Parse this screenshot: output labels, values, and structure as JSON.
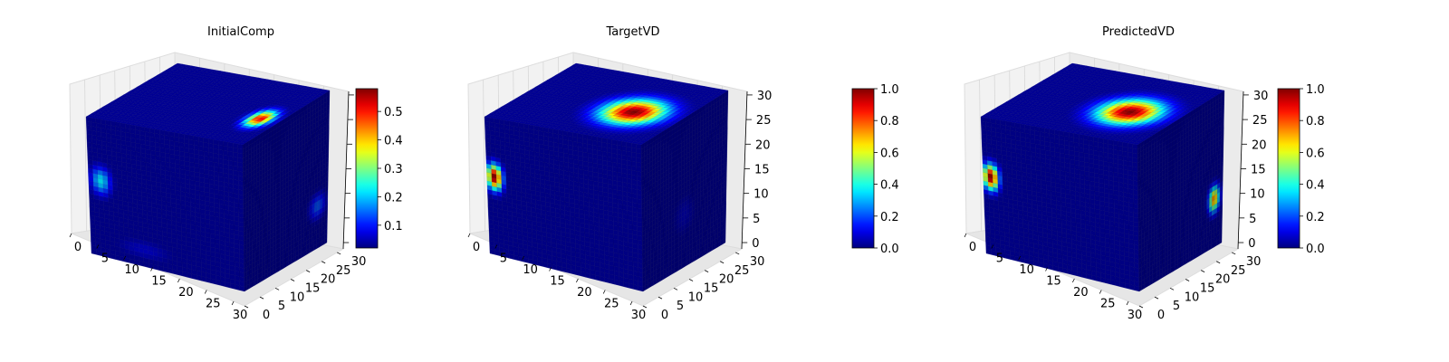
{
  "chart_data": [
    {
      "type": "voxel3d",
      "title": "InitialComp",
      "colormap": "jet",
      "axes": {
        "x_ticks": [
          "0",
          "5",
          "10",
          "15",
          "20",
          "25",
          "30"
        ],
        "y_ticks": [
          "0",
          "5",
          "10",
          "15",
          "20",
          "25",
          "30"
        ],
        "z_ticks": [],
        "range": [
          0,
          32
        ]
      },
      "colorbar": {
        "min": 0.02,
        "max": 0.58,
        "ticks": [
          "0.1",
          "0.2",
          "0.3",
          "0.4",
          "0.5"
        ],
        "tick_values": [
          0.1,
          0.2,
          0.3,
          0.4,
          0.5
        ]
      },
      "features": [
        {
          "face": "top",
          "u": 0.88,
          "v": 0.42,
          "ru": 0.1,
          "rv": 0.2,
          "value": 0.52
        },
        {
          "face": "front",
          "u": 0.08,
          "v": 0.55,
          "ru": 0.09,
          "rv": 0.14,
          "value": 0.22
        },
        {
          "face": "front",
          "u": 0.35,
          "v": 0.12,
          "ru": 0.25,
          "rv": 0.1,
          "value": 0.06
        },
        {
          "face": "right",
          "u": 0.88,
          "v": 0.28,
          "ru": 0.14,
          "rv": 0.12,
          "value": 0.14
        }
      ]
    },
    {
      "type": "voxel3d",
      "title": "TargetVD",
      "colormap": "jet",
      "axes": {
        "x_ticks": [
          "0",
          "5",
          "10",
          "15",
          "20",
          "25",
          "30"
        ],
        "y_ticks": [
          "0",
          "5",
          "10",
          "15",
          "20",
          "25",
          "30"
        ],
        "z_ticks": [
          "0",
          "5",
          "10",
          "15",
          "20",
          "25",
          "30"
        ],
        "range": [
          0,
          32
        ]
      },
      "colorbar": {
        "min": 0.0,
        "max": 1.0,
        "ticks": [
          "0.0",
          "0.2",
          "0.4",
          "0.6",
          "0.8",
          "1.0"
        ],
        "tick_values": [
          0.0,
          0.2,
          0.4,
          0.6,
          0.8,
          1.0
        ]
      },
      "features": [
        {
          "face": "top",
          "u": 0.7,
          "v": 0.45,
          "ru": 0.26,
          "rv": 0.3,
          "value": 1.0
        },
        {
          "face": "front",
          "u": 0.05,
          "v": 0.57,
          "ru": 0.07,
          "rv": 0.13,
          "value": 1.0
        },
        {
          "face": "right",
          "u": 0.5,
          "v": 0.35,
          "ru": 0.2,
          "rv": 0.2,
          "value": 0.06
        }
      ]
    },
    {
      "type": "voxel3d",
      "title": "PredictedVD",
      "colormap": "jet",
      "axes": {
        "x_ticks": [
          "0",
          "5",
          "10",
          "15",
          "20",
          "25",
          "30"
        ],
        "y_ticks": [
          "0",
          "5",
          "10",
          "15",
          "20",
          "25",
          "30"
        ],
        "z_ticks": [
          "0",
          "5",
          "10",
          "15",
          "20",
          "25",
          "30"
        ],
        "range": [
          0,
          32
        ]
      },
      "colorbar": {
        "min": 0.0,
        "max": 1.0,
        "ticks": [
          "0.0",
          "0.2",
          "0.4",
          "0.6",
          "0.8",
          "1.0"
        ],
        "tick_values": [
          0.0,
          0.2,
          0.4,
          0.6,
          0.8,
          1.0
        ]
      },
      "features": [
        {
          "face": "top",
          "u": 0.7,
          "v": 0.45,
          "ru": 0.26,
          "rv": 0.3,
          "value": 1.0
        },
        {
          "face": "front",
          "u": 0.05,
          "v": 0.57,
          "ru": 0.07,
          "rv": 0.13,
          "value": 1.0
        },
        {
          "face": "right",
          "u": 0.9,
          "v": 0.32,
          "ru": 0.09,
          "rv": 0.12,
          "value": 0.75
        }
      ]
    }
  ]
}
